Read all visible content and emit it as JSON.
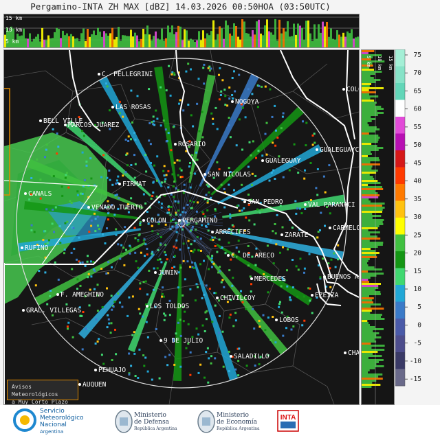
{
  "title": "Pergamino-INTA ZH MAX [dBZ] 14.03.2026 00:50HOA (03:50UTC)",
  "top_panel": {
    "height_labels": [
      "15 km",
      "10 km",
      "5 km"
    ]
  },
  "side_panel": {
    "height_labels": [
      "5 km",
      "10 km",
      "15 km"
    ]
  },
  "colorbar": {
    "ticks": [
      "75",
      "70",
      "65",
      "60",
      "55",
      "50",
      "45",
      "40",
      "35",
      "30",
      "25",
      "20",
      "15",
      "10",
      "5",
      "0",
      "-5",
      "-10",
      "-15"
    ],
    "colors": [
      "#a4efd6",
      "#87e3c8",
      "#62d6b8",
      "#ffffff",
      "#e24bd8",
      "#b80fb3",
      "#d51818",
      "#ff3a00",
      "#ff7a00",
      "#ffc20f",
      "#ffff00",
      "#40c040",
      "#149614",
      "#40d870",
      "#21a7d6",
      "#3a7ac8",
      "#4a5aa8",
      "#4d4d8c",
      "#3a3a66",
      "#6a6a8a"
    ]
  },
  "cities": [
    {
      "name": "C. PELLEGRINI"
    },
    {
      "name": "LAS ROSAS"
    },
    {
      "name": "NOGOYA"
    },
    {
      "name": "BELL VILLE"
    },
    {
      "name": "MARCOS JUAREZ"
    },
    {
      "name": "ROSARIO"
    },
    {
      "name": "GUALEGUAY"
    },
    {
      "name": "GUALEGUAYC"
    },
    {
      "name": "COLO"
    },
    {
      "name": "SAN NICOLAS"
    },
    {
      "name": "FIRMAT"
    },
    {
      "name": "CANALS"
    },
    {
      "name": "SAN PEDRO"
    },
    {
      "name": "VAL PARANACI"
    },
    {
      "name": "VENADO TUERTO"
    },
    {
      "name": "COLON"
    },
    {
      "name": "PERGAMINO"
    },
    {
      "name": "ARRECIFES"
    },
    {
      "name": "CARMELO"
    },
    {
      "name": "ZARATE"
    },
    {
      "name": "RUFINO"
    },
    {
      "name": "C. DE ARECO"
    },
    {
      "name": "JUNIN"
    },
    {
      "name": "MERCEDES"
    },
    {
      "name": "BUENOS A"
    },
    {
      "name": "F. AMEGHINO"
    },
    {
      "name": "CHIVILCOY"
    },
    {
      "name": "EZEIZA"
    },
    {
      "name": "LOS TOLDOS"
    },
    {
      "name": "GRAL. VILLEGAS"
    },
    {
      "name": "LOBOS"
    },
    {
      "name": "9 DE JULIO"
    },
    {
      "name": "SALADILLO"
    },
    {
      "name": "CHA"
    },
    {
      "name": "PEHUAJO"
    },
    {
      "name": "AUQUEN"
    }
  ],
  "warning_box": {
    "line1": "Avisos Meteorológicos",
    "line2": "a Muy Corto Plazo"
  },
  "logos": {
    "smn": [
      "Servicio",
      "Meteorológico",
      "Nacional",
      "Argentina"
    ],
    "defensa": [
      "Ministerio",
      "de Defensa",
      "República Argentina"
    ],
    "economia": [
      "Ministerio",
      "de Economía",
      "República Argentina"
    ],
    "inta": "INTA"
  }
}
